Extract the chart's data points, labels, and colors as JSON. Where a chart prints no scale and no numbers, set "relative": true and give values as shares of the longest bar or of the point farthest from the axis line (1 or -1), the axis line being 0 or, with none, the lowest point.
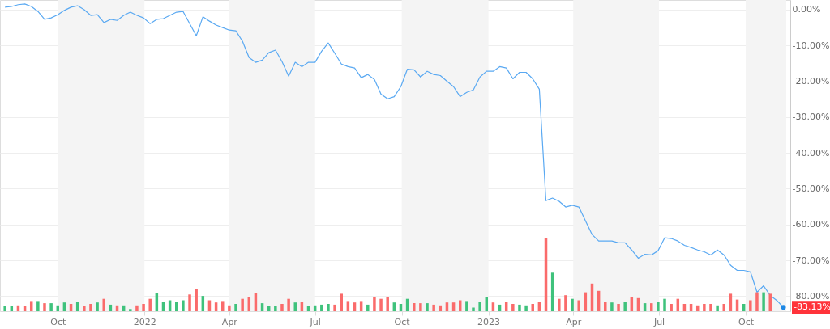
{
  "chart_data": [
    {
      "type": "line",
      "x": [
        "2021-08-06",
        "2021-08-13",
        "2021-08-20",
        "2021-08-27",
        "2021-09-03",
        "2021-09-10",
        "2021-09-17",
        "2021-09-24",
        "2021-10-01",
        "2021-10-08",
        "2021-10-15",
        "2021-10-22",
        "2021-10-29",
        "2021-11-05",
        "2021-11-12",
        "2021-11-19",
        "2021-11-26",
        "2021-12-03",
        "2021-12-10",
        "2021-12-17",
        "2021-12-24",
        "2021-12-31",
        "2022-01-07",
        "2022-01-14",
        "2022-01-21",
        "2022-01-28",
        "2022-02-04",
        "2022-02-11",
        "2022-02-18",
        "2022-02-25",
        "2022-03-04",
        "2022-03-11",
        "2022-03-18",
        "2022-03-25",
        "2022-04-01",
        "2022-04-08",
        "2022-04-15",
        "2022-04-22",
        "2022-04-29",
        "2022-05-06",
        "2022-05-13",
        "2022-05-20",
        "2022-05-27",
        "2022-06-03",
        "2022-06-10",
        "2022-06-17",
        "2022-06-24",
        "2022-07-01",
        "2022-07-08",
        "2022-07-15",
        "2022-07-22",
        "2022-07-29",
        "2022-08-05",
        "2022-08-12",
        "2022-08-19",
        "2022-08-26",
        "2022-09-02",
        "2022-09-09",
        "2022-09-16",
        "2022-09-23",
        "2022-09-30",
        "2022-10-07",
        "2022-10-14",
        "2022-10-21",
        "2022-10-28",
        "2022-11-04",
        "2022-11-11",
        "2022-11-18",
        "2022-11-25",
        "2022-12-02",
        "2022-12-09",
        "2022-12-16",
        "2022-12-23",
        "2022-12-30",
        "2023-01-06",
        "2023-01-13",
        "2023-01-20",
        "2023-01-27",
        "2023-02-03",
        "2023-02-10",
        "2023-02-17",
        "2023-02-24",
        "2023-03-03",
        "2023-03-10",
        "2023-03-17",
        "2023-03-24",
        "2023-03-31",
        "2023-04-07",
        "2023-04-14",
        "2023-04-21",
        "2023-04-28",
        "2023-05-05",
        "2023-05-12",
        "2023-05-19",
        "2023-05-26",
        "2023-06-02",
        "2023-06-09",
        "2023-06-16",
        "2023-06-23",
        "2023-06-30",
        "2023-07-07",
        "2023-07-14",
        "2023-07-21",
        "2023-07-28",
        "2023-08-04",
        "2023-08-11",
        "2023-08-18",
        "2023-08-25",
        "2023-09-01",
        "2023-09-08",
        "2023-09-15",
        "2023-09-22",
        "2023-09-29",
        "2023-10-06",
        "2023-10-13",
        "2023-10-20",
        "2023-10-27",
        "2023-11-03",
        "2023-11-10"
      ],
      "series": [
        {
          "color": "#5aa9f2",
          "values": [
            0.7,
            0.9,
            1.4,
            1.6,
            0.9,
            -0.5,
            -2.7,
            -2.3,
            -1.4,
            -0.2,
            0.7,
            1.1,
            0,
            -1.6,
            -1.4,
            -3.6,
            -2.7,
            -3.0,
            -1.6,
            -0.7,
            -1.6,
            -2.3,
            -3.9,
            -2.7,
            -2.5,
            -1.6,
            -0.7,
            -0.5,
            -3.9,
            -7.3,
            -2.0,
            -3.2,
            -4.3,
            -5.0,
            -5.7,
            -5.9,
            -8.8,
            -13.4,
            -14.7,
            -14.1,
            -12.0,
            -11.3,
            -14.5,
            -18.6,
            -14.7,
            -15.9,
            -14.7,
            -14.7,
            -11.6,
            -9.3,
            -12.2,
            -15.2,
            -15.9,
            -16.3,
            -19.0,
            -18.1,
            -19.5,
            -23.6,
            -24.9,
            -24.3,
            -21.5,
            -16.6,
            -16.8,
            -18.8,
            -17.2,
            -18.1,
            -18.4,
            -20.0,
            -21.5,
            -24.3,
            -23.1,
            -22.4,
            -18.8,
            -17.2,
            -17.2,
            -15.9,
            -16.3,
            -19.3,
            -17.5,
            -17.5,
            -19.3,
            -22.2,
            -53.3,
            -52.6,
            -53.5,
            -55.1,
            -54.6,
            -55.1,
            -59.0,
            -62.8,
            -64.6,
            -64.6,
            -64.6,
            -65.1,
            -65.1,
            -67.1,
            -69.4,
            -68.3,
            -68.5,
            -67.3,
            -63.7,
            -63.9,
            -64.6,
            -65.8,
            -66.4,
            -67.1,
            -67.6,
            -68.5,
            -67.1,
            -68.5,
            -71.4,
            -72.8,
            -72.8,
            -73.2,
            -78.9,
            -77.1,
            -79.8,
            -81.2,
            -83.13
          ]
        }
      ],
      "xlim": [
        "2021-08-05",
        "2023-11-13"
      ],
      "xticks": [
        {
          "value": "2021-10-01",
          "label": "Oct"
        },
        {
          "value": "2022-01-01",
          "label": "2022"
        },
        {
          "value": "2022-04-01",
          "label": "Apr"
        },
        {
          "value": "2022-07-01",
          "label": "Jul"
        },
        {
          "value": "2022-10-01",
          "label": "Oct"
        },
        {
          "value": "2023-01-01",
          "label": "2023"
        },
        {
          "value": "2023-04-01",
          "label": "Apr"
        },
        {
          "value": "2023-07-01",
          "label": "Jul"
        },
        {
          "value": "2023-10-01",
          "label": "Oct"
        }
      ],
      "ylim": [
        -84.2,
        2.7
      ],
      "yticks": [
        {
          "value": 0,
          "label": "0.00%"
        },
        {
          "value": -10,
          "label": "-10.00%"
        },
        {
          "value": -20,
          "label": "-20.00%"
        },
        {
          "value": -30,
          "label": "-30.00%"
        },
        {
          "value": -40,
          "label": "-40.00%"
        },
        {
          "value": -50,
          "label": "-50.00%"
        },
        {
          "value": -60,
          "label": "-60.00%"
        },
        {
          "value": -70,
          "label": "-70.00%"
        },
        {
          "value": -80,
          "label": "-80.00%"
        }
      ],
      "grid": "y",
      "bands": [
        {
          "axis": "x",
          "from": "2021-10-01",
          "to": "2022-01-01",
          "color": "#f4f4f4"
        },
        {
          "axis": "x",
          "from": "2022-04-01",
          "to": "2022-07-01",
          "color": "#f4f4f4"
        },
        {
          "axis": "x",
          "from": "2022-10-01",
          "to": "2023-01-01",
          "color": "#f4f4f4"
        },
        {
          "axis": "x",
          "from": "2023-04-01",
          "to": "2023-07-01",
          "color": "#f4f4f4"
        },
        {
          "axis": "x",
          "from": "2023-10-01",
          "to": "2023-11-13",
          "color": "#f4f4f4"
        }
      ],
      "annotations": [
        {
          "text": "-83.13%",
          "x": "2023-11-10",
          "y": -83.13
        }
      ]
    },
    {
      "type": "bar",
      "relative": true,
      "tick_labels": false,
      "xlim": [
        "2021-08-05",
        "2023-11-13"
      ],
      "x": [
        "2021-08-06",
        "2021-08-13",
        "2021-08-20",
        "2021-08-27",
        "2021-09-03",
        "2021-09-10",
        "2021-09-17",
        "2021-09-24",
        "2021-10-01",
        "2021-10-08",
        "2021-10-15",
        "2021-10-22",
        "2021-10-29",
        "2021-11-05",
        "2021-11-12",
        "2021-11-19",
        "2021-11-26",
        "2021-12-03",
        "2021-12-10",
        "2021-12-17",
        "2021-12-24",
        "2021-12-31",
        "2022-01-07",
        "2022-01-14",
        "2022-01-21",
        "2022-01-28",
        "2022-02-04",
        "2022-02-11",
        "2022-02-18",
        "2022-02-25",
        "2022-03-04",
        "2022-03-11",
        "2022-03-18",
        "2022-03-25",
        "2022-04-01",
        "2022-04-08",
        "2022-04-15",
        "2022-04-22",
        "2022-04-29",
        "2022-05-06",
        "2022-05-13",
        "2022-05-20",
        "2022-05-27",
        "2022-06-03",
        "2022-06-10",
        "2022-06-17",
        "2022-06-24",
        "2022-07-01",
        "2022-07-08",
        "2022-07-15",
        "2022-07-22",
        "2022-07-29",
        "2022-08-05",
        "2022-08-12",
        "2022-08-19",
        "2022-08-26",
        "2022-09-02",
        "2022-09-09",
        "2022-09-16",
        "2022-09-23",
        "2022-09-30",
        "2022-10-07",
        "2022-10-14",
        "2022-10-21",
        "2022-10-28",
        "2022-11-04",
        "2022-11-11",
        "2022-11-18",
        "2022-11-25",
        "2022-12-02",
        "2022-12-09",
        "2022-12-16",
        "2022-12-23",
        "2022-12-30",
        "2023-01-06",
        "2023-01-13",
        "2023-01-20",
        "2023-01-27",
        "2023-02-03",
        "2023-02-10",
        "2023-02-17",
        "2023-02-24",
        "2023-03-03",
        "2023-03-10",
        "2023-03-17",
        "2023-03-24",
        "2023-03-31",
        "2023-04-07",
        "2023-04-14",
        "2023-04-21",
        "2023-04-28",
        "2023-05-05",
        "2023-05-12",
        "2023-05-19",
        "2023-05-26",
        "2023-06-02",
        "2023-06-09",
        "2023-06-16",
        "2023-06-23",
        "2023-06-30",
        "2023-07-07",
        "2023-07-14",
        "2023-07-21",
        "2023-07-28",
        "2023-08-04",
        "2023-08-11",
        "2023-08-18",
        "2023-08-25",
        "2023-09-01",
        "2023-09-08",
        "2023-09-15",
        "2023-09-22",
        "2023-09-29",
        "2023-10-06",
        "2023-10-13",
        "2023-10-20",
        "2023-10-27"
      ],
      "values": [
        0.07,
        0.07,
        0.08,
        0.07,
        0.14,
        0.14,
        0.11,
        0.11,
        0.08,
        0.12,
        0.1,
        0.13,
        0.07,
        0.1,
        0.12,
        0.17,
        0.09,
        0.08,
        0.08,
        0.03,
        0.08,
        0.1,
        0.17,
        0.25,
        0.13,
        0.15,
        0.13,
        0.15,
        0.23,
        0.31,
        0.21,
        0.15,
        0.12,
        0.14,
        0.08,
        0.1,
        0.17,
        0.2,
        0.25,
        0.11,
        0.07,
        0.07,
        0.1,
        0.17,
        0.12,
        0.13,
        0.07,
        0.08,
        0.09,
        0.1,
        0.09,
        0.24,
        0.14,
        0.12,
        0.14,
        0.09,
        0.2,
        0.17,
        0.2,
        0.12,
        0.1,
        0.17,
        0.11,
        0.11,
        0.11,
        0.09,
        0.08,
        0.12,
        0.12,
        0.15,
        0.14,
        0.05,
        0.13,
        0.19,
        0.12,
        0.09,
        0.13,
        0.1,
        0.09,
        0.08,
        0.1,
        0.13,
        1.0,
        0.53,
        0.17,
        0.22,
        0.17,
        0.15,
        0.26,
        0.38,
        0.28,
        0.13,
        0.12,
        0.1,
        0.13,
        0.2,
        0.18,
        0.11,
        0.11,
        0.13,
        0.17,
        0.1,
        0.17,
        0.1,
        0.1,
        0.08,
        0.1,
        0.1,
        0.08,
        0.1,
        0.24,
        0.16,
        0.1,
        0.15,
        0.26,
        0.26,
        0.24
      ],
      "colors": [
        "#3fc27c",
        "#3fc27c",
        "#fa6b6b",
        "#fa6b6b",
        "#fa6b6b",
        "#3fc27c",
        "#fa6b6b",
        "#3fc27c",
        "#3fc27c",
        "#3fc27c",
        "#fa6b6b",
        "#3fc27c",
        "#fa6b6b",
        "#fa6b6b",
        "#3fc27c",
        "#fa6b6b",
        "#3fc27c",
        "#fa6b6b",
        "#3fc27c",
        "#3fc27c",
        "#fa6b6b",
        "#fa6b6b",
        "#fa6b6b",
        "#3fc27c",
        "#3fc27c",
        "#3fc27c",
        "#3fc27c",
        "#3fc27c",
        "#fa6b6b",
        "#fa6b6b",
        "#3fc27c",
        "#fa6b6b",
        "#fa6b6b",
        "#fa6b6b",
        "#fa6b6b",
        "#3fc27c",
        "#fa6b6b",
        "#fa6b6b",
        "#fa6b6b",
        "#3fc27c",
        "#3fc27c",
        "#3fc27c",
        "#fa6b6b",
        "#fa6b6b",
        "#3fc27c",
        "#fa6b6b",
        "#3fc27c",
        "#3fc27c",
        "#3fc27c",
        "#3fc27c",
        "#fa6b6b",
        "#fa6b6b",
        "#fa6b6b",
        "#fa6b6b",
        "#fa6b6b",
        "#3fc27c",
        "#fa6b6b",
        "#fa6b6b",
        "#fa6b6b",
        "#3fc27c",
        "#3fc27c",
        "#3fc27c",
        "#fa6b6b",
        "#fa6b6b",
        "#3fc27c",
        "#fa6b6b",
        "#fa6b6b",
        "#fa6b6b",
        "#fa6b6b",
        "#fa6b6b",
        "#3fc27c",
        "#3fc27c",
        "#3fc27c",
        "#3fc27c",
        "#fa6b6b",
        "#3fc27c",
        "#fa6b6b",
        "#fa6b6b",
        "#3fc27c",
        "#3fc27c",
        "#fa6b6b",
        "#fa6b6b",
        "#fa6b6b",
        "#3fc27c",
        "#fa6b6b",
        "#fa6b6b",
        "#3fc27c",
        "#fa6b6b",
        "#fa6b6b",
        "#fa6b6b",
        "#fa6b6b",
        "#fa6b6b",
        "#3fc27c",
        "#fa6b6b",
        "#3fc27c",
        "#fa6b6b",
        "#fa6b6b",
        "#3fc27c",
        "#fa6b6b",
        "#3fc27c",
        "#3fc27c",
        "#fa6b6b",
        "#fa6b6b",
        "#fa6b6b",
        "#fa6b6b",
        "#fa6b6b",
        "#fa6b6b",
        "#fa6b6b",
        "#3fc27c",
        "#fa6b6b",
        "#fa6b6b",
        "#fa6b6b",
        "#3fc27c",
        "#fa6b6b",
        "#fa6b6b",
        "#3fc27c",
        "#fa6b6b"
      ]
    }
  ]
}
